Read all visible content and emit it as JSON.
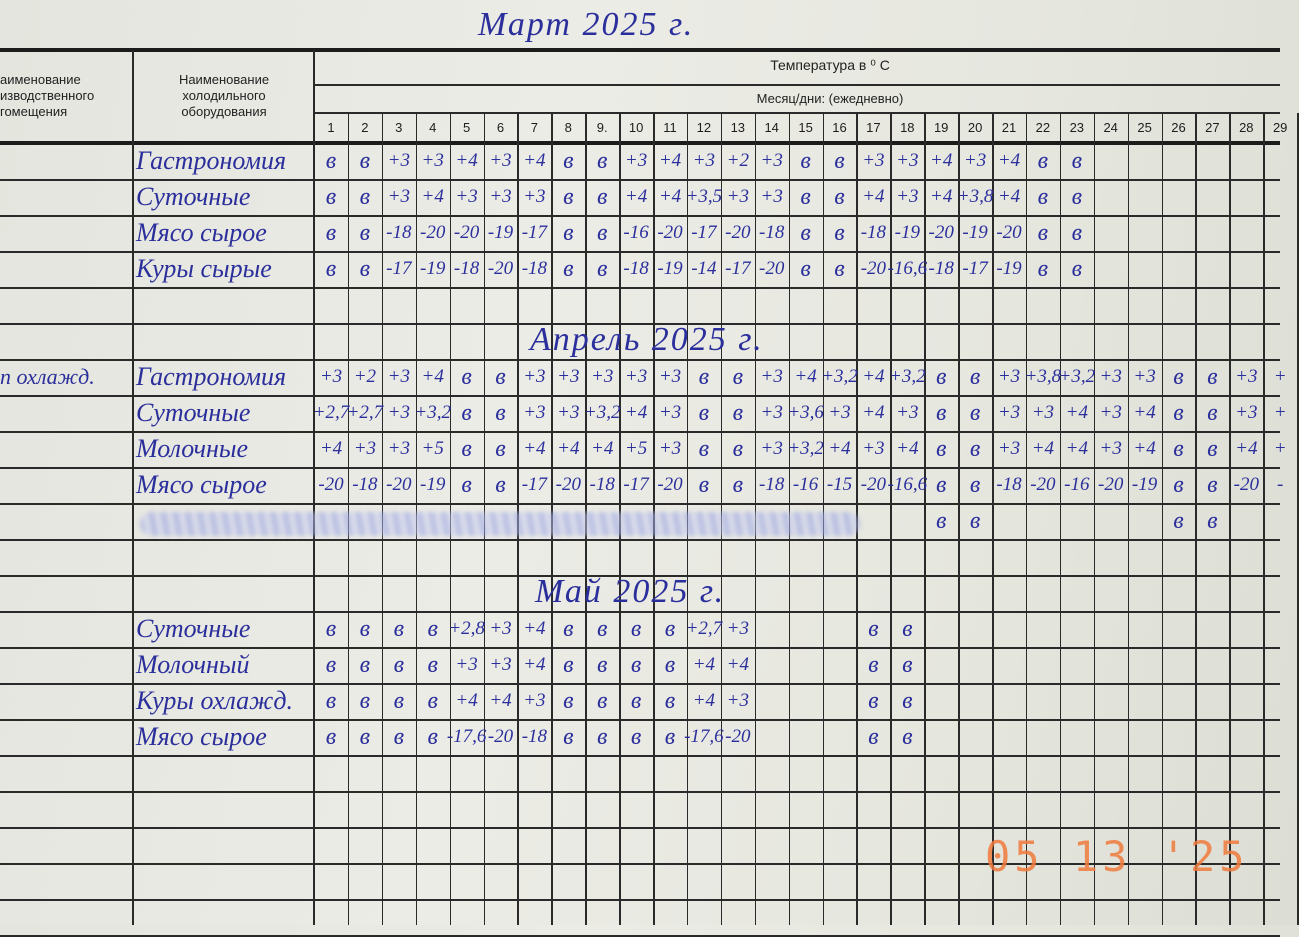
{
  "document": {
    "header": {
      "room_column": "аименование\nизводственного\nгомещения",
      "equipment_column": "Наименование\nхолодильного\nоборудования",
      "temperature": "Температура в ⁰ С",
      "month_days": "Месяц/дни:  (ежедневно)",
      "days": [
        "1",
        "2",
        "3",
        "4",
        "5",
        "6",
        "7",
        "8",
        "9.",
        "10",
        "11",
        "12",
        "13",
        "14",
        "15",
        "16",
        "17",
        "18",
        "19",
        "20",
        "21",
        "22",
        "23",
        "24",
        "25",
        "26",
        "27",
        "28",
        "29"
      ]
    },
    "sections": [
      {
        "title": "Март 2025 г.",
        "rows": [
          {
            "equipment": "Гастрономия",
            "values": [
              "в",
              "в",
              "+3",
              "+3",
              "+4",
              "+3",
              "+4",
              "в",
              "в",
              "+3",
              "+4",
              "+3",
              "+2",
              "+3",
              "в",
              "в",
              "+3",
              "+3",
              "+4",
              "+3",
              "+4",
              "в",
              "в"
            ]
          },
          {
            "equipment": "Суточные",
            "values": [
              "в",
              "в",
              "+3",
              "+4",
              "+3",
              "+3",
              "+3",
              "в",
              "в",
              "+4",
              "+4",
              "+3,5",
              "+3",
              "+3",
              "в",
              "в",
              "+4",
              "+3",
              "+4",
              "+3,8",
              "+4",
              "в",
              "в"
            ]
          },
          {
            "equipment": "Мясо сырое",
            "values": [
              "в",
              "в",
              "-18",
              "-20",
              "-20",
              "-19",
              "-17",
              "в",
              "в",
              "-16",
              "-20",
              "-17",
              "-20",
              "-18",
              "в",
              "в",
              "-18",
              "-19",
              "-20",
              "-19",
              "-20",
              "в",
              "в"
            ]
          },
          {
            "equipment": "Куры сырые",
            "values": [
              "в",
              "в",
              "-17",
              "-19",
              "-18",
              "-20",
              "-18",
              "в",
              "в",
              "-18",
              "-19",
              "-14",
              "-17",
              "-20",
              "в",
              "в",
              "-20",
              "-16,6",
              "-18",
              "-17",
              "-19",
              "в",
              "в"
            ]
          }
        ]
      },
      {
        "title": "Апрель 2025 г.",
        "room": "п охлажд.",
        "rows": [
          {
            "equipment": "Гастрономия",
            "values": [
              "+3",
              "+2",
              "+3",
              "+4",
              "в",
              "в",
              "+3",
              "+3",
              "+3",
              "+3",
              "+3",
              "в",
              "в",
              "+3",
              "+4",
              "+3,2",
              "+4",
              "+3,2",
              "в",
              "в",
              "+3",
              "+3,8",
              "+3,2",
              "+3",
              "+3",
              "в",
              "в",
              "+3",
              "+"
            ]
          },
          {
            "equipment": "Суточные",
            "values": [
              "+2,7",
              "+2,7",
              "+3",
              "+3,2",
              "в",
              "в",
              "+3",
              "+3",
              "+3,2",
              "+4",
              "+3",
              "в",
              "в",
              "+3",
              "+3,6",
              "+3",
              "+4",
              "+3",
              "в",
              "в",
              "+3",
              "+3",
              "+4",
              "+3",
              "+4",
              "в",
              "в",
              "+3",
              "+"
            ]
          },
          {
            "equipment": "Молочные",
            "values": [
              "+4",
              "+3",
              "+3",
              "+5",
              "в",
              "в",
              "+4",
              "+4",
              "+4",
              "+5",
              "+3",
              "в",
              "в",
              "+3",
              "+3,2",
              "+4",
              "+3",
              "+4",
              "в",
              "в",
              "+3",
              "+4",
              "+4",
              "+3",
              "+4",
              "в",
              "в",
              "+4",
              "+"
            ]
          },
          {
            "equipment": "Мясо сырое",
            "values": [
              "-20",
              "-18",
              "-20",
              "-19",
              "в",
              "в",
              "-17",
              "-20",
              "-18",
              "-17",
              "-20",
              "в",
              "в",
              "-18",
              "-16",
              "-15",
              "-20",
              "-16,6",
              "в",
              "в",
              "-18",
              "-20",
              "-16",
              "-20",
              "-19",
              "в",
              "в",
              "-20",
              "-"
            ]
          },
          {
            "equipment": "",
            "struck_out": true,
            "values": [
              "",
              "",
              "",
              "",
              "",
              "",
              "",
              "",
              "",
              "",
              "",
              "",
              "",
              "",
              "",
              "",
              "",
              "",
              "в",
              "в",
              "",
              "",
              "",
              "",
              "",
              "в",
              "в",
              "",
              ""
            ]
          }
        ]
      },
      {
        "title": "Май 2025 г.",
        "rows": [
          {
            "equipment": "Суточные",
            "values": [
              "в",
              "в",
              "в",
              "в",
              "+2,8",
              "+3",
              "+4",
              "в",
              "в",
              "в",
              "в",
              "+2,7",
              "+3",
              "",
              "",
              "",
              "в",
              "в"
            ]
          },
          {
            "equipment": "Молочный",
            "values": [
              "в",
              "в",
              "в",
              "в",
              "+3",
              "+3",
              "+4",
              "в",
              "в",
              "в",
              "в",
              "+4",
              "+4",
              "",
              "",
              "",
              "в",
              "в"
            ]
          },
          {
            "equipment": "Куры охлажд.",
            "values": [
              "в",
              "в",
              "в",
              "в",
              "+4",
              "+4",
              "+3",
              "в",
              "в",
              "в",
              "в",
              "+4",
              "+3",
              "",
              "",
              "",
              "в",
              "в"
            ]
          },
          {
            "equipment": "Мясо сырое",
            "values": [
              "в",
              "в",
              "в",
              "в",
              "-17,6",
              "-20",
              "-18",
              "в",
              "в",
              "в",
              "в",
              "-17,6",
              "-20",
              "",
              "",
              "",
              "в",
              "в"
            ]
          }
        ]
      }
    ],
    "photo_date_stamp": "05 13 '25",
    "colors": {
      "ink": "#2b2f9c",
      "stamp": "#f07a3c",
      "paper": "#e9e9e2"
    }
  }
}
